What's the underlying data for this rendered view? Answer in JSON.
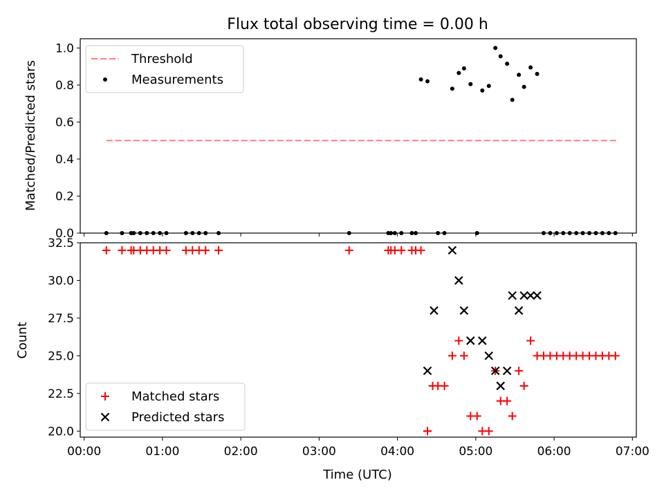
{
  "figure": {
    "title": "Flux total observing time = 0.00 h",
    "xlabel": "Time (UTC)"
  },
  "chart_data": [
    {
      "type": "scatter",
      "panel": "top",
      "ylabel": "Matched/Predicted stars",
      "xlim": [
        "00:00",
        "07:00"
      ],
      "ylim": [
        0,
        1.05
      ],
      "yticks": [
        "0.0",
        "0.2",
        "0.4",
        "0.6",
        "0.8",
        "1.0"
      ],
      "xticks": [
        "00:00",
        "01:00",
        "02:00",
        "03:00",
        "04:00",
        "05:00",
        "06:00",
        "07:00"
      ],
      "legend_position": "upper-left",
      "series": [
        {
          "name": "Threshold",
          "kind": "dashed-line",
          "color": "#ff7f7f",
          "x": [
            "00:17",
            "06:49"
          ],
          "y": [
            0.5,
            0.5
          ]
        },
        {
          "name": "Measurements",
          "kind": "dot",
          "color": "#000000",
          "x": [
            "00:17",
            "00:29",
            "00:36",
            "00:38",
            "00:43",
            "00:48",
            "00:53",
            "00:58",
            "01:03",
            "01:18",
            "01:23",
            "01:28",
            "01:33",
            "01:43",
            "03:23",
            "03:53",
            "03:55",
            "03:58",
            "04:03",
            "04:11",
            "04:14",
            "04:18",
            "04:23",
            "04:31",
            "04:36",
            "04:42",
            "04:47",
            "04:51",
            "04:56",
            "05:01",
            "05:05",
            "05:10",
            "05:15",
            "05:19",
            "05:24",
            "05:28",
            "05:33",
            "05:37",
            "05:42",
            "05:47",
            "05:52",
            "05:57",
            "06:02",
            "06:07",
            "06:12",
            "06:17",
            "06:22",
            "06:27",
            "06:32",
            "06:37",
            "06:42",
            "06:47"
          ],
          "y": [
            0,
            0,
            0,
            0,
            0,
            0,
            0,
            0,
            0,
            0,
            0,
            0,
            0,
            0,
            0,
            0,
            0,
            0,
            0,
            0,
            0,
            0.83,
            0.82,
            0,
            0,
            0.78,
            0.865,
            0.89,
            0.805,
            0,
            0.77,
            0.795,
            1.0,
            0.955,
            0.915,
            0.72,
            0.855,
            0.79,
            0.895,
            0.86,
            0,
            0,
            0,
            0,
            0,
            0,
            0,
            0,
            0,
            0,
            0,
            0
          ]
        }
      ]
    },
    {
      "type": "scatter",
      "panel": "bottom",
      "ylabel": "Count",
      "xlim": [
        "00:00",
        "07:00"
      ],
      "ylim": [
        19.6,
        32.5
      ],
      "yticks": [
        "20.0",
        "22.5",
        "25.0",
        "27.5",
        "30.0",
        "32.5"
      ],
      "xticks": [
        "00:00",
        "01:00",
        "02:00",
        "03:00",
        "04:00",
        "05:00",
        "06:00",
        "07:00"
      ],
      "legend_position": "lower-left",
      "series": [
        {
          "name": "Matched stars",
          "marker": "+",
          "color": "#ff0000",
          "x": [
            "00:17",
            "00:29",
            "00:36",
            "00:38",
            "00:43",
            "00:48",
            "00:53",
            "00:58",
            "01:03",
            "01:18",
            "01:23",
            "01:28",
            "01:33",
            "01:43",
            "03:23",
            "03:53",
            "03:55",
            "03:58",
            "04:03",
            "04:11",
            "04:14",
            "04:18",
            "04:23",
            "04:23",
            "04:27",
            "04:31",
            "04:36",
            "04:42",
            "04:47",
            "04:51",
            "04:56",
            "05:01",
            "05:05",
            "05:10",
            "05:15",
            "05:19",
            "05:24",
            "05:28",
            "05:33",
            "05:37",
            "05:42",
            "05:47",
            "05:52",
            "05:57",
            "06:02",
            "06:07",
            "06:12",
            "06:17",
            "06:22",
            "06:27",
            "06:32",
            "06:37",
            "06:42",
            "06:47"
          ],
          "y": [
            32,
            32,
            32,
            32,
            32,
            32,
            32,
            32,
            32,
            32,
            32,
            32,
            32,
            32,
            32,
            32,
            32,
            32,
            32,
            32,
            32,
            32,
            20,
            20,
            23,
            23,
            23,
            25,
            26,
            25,
            21,
            21,
            20,
            20,
            24,
            22,
            22,
            21,
            24,
            23,
            26,
            25,
            25,
            25,
            25,
            25,
            25,
            25,
            25,
            25,
            25,
            25,
            25,
            25
          ]
        },
        {
          "name": "Predicted stars",
          "marker": "x",
          "color": "#000000",
          "x": [
            "04:23",
            "04:28",
            "04:42",
            "04:47",
            "04:51",
            "04:56",
            "05:05",
            "05:10",
            "05:15",
            "05:19",
            "05:24",
            "05:28",
            "05:33",
            "05:37",
            "05:42",
            "05:47"
          ],
          "y": [
            24,
            28,
            32,
            30,
            28,
            26,
            26,
            25,
            24,
            23,
            24,
            29,
            28,
            29,
            29,
            29
          ]
        }
      ]
    }
  ]
}
